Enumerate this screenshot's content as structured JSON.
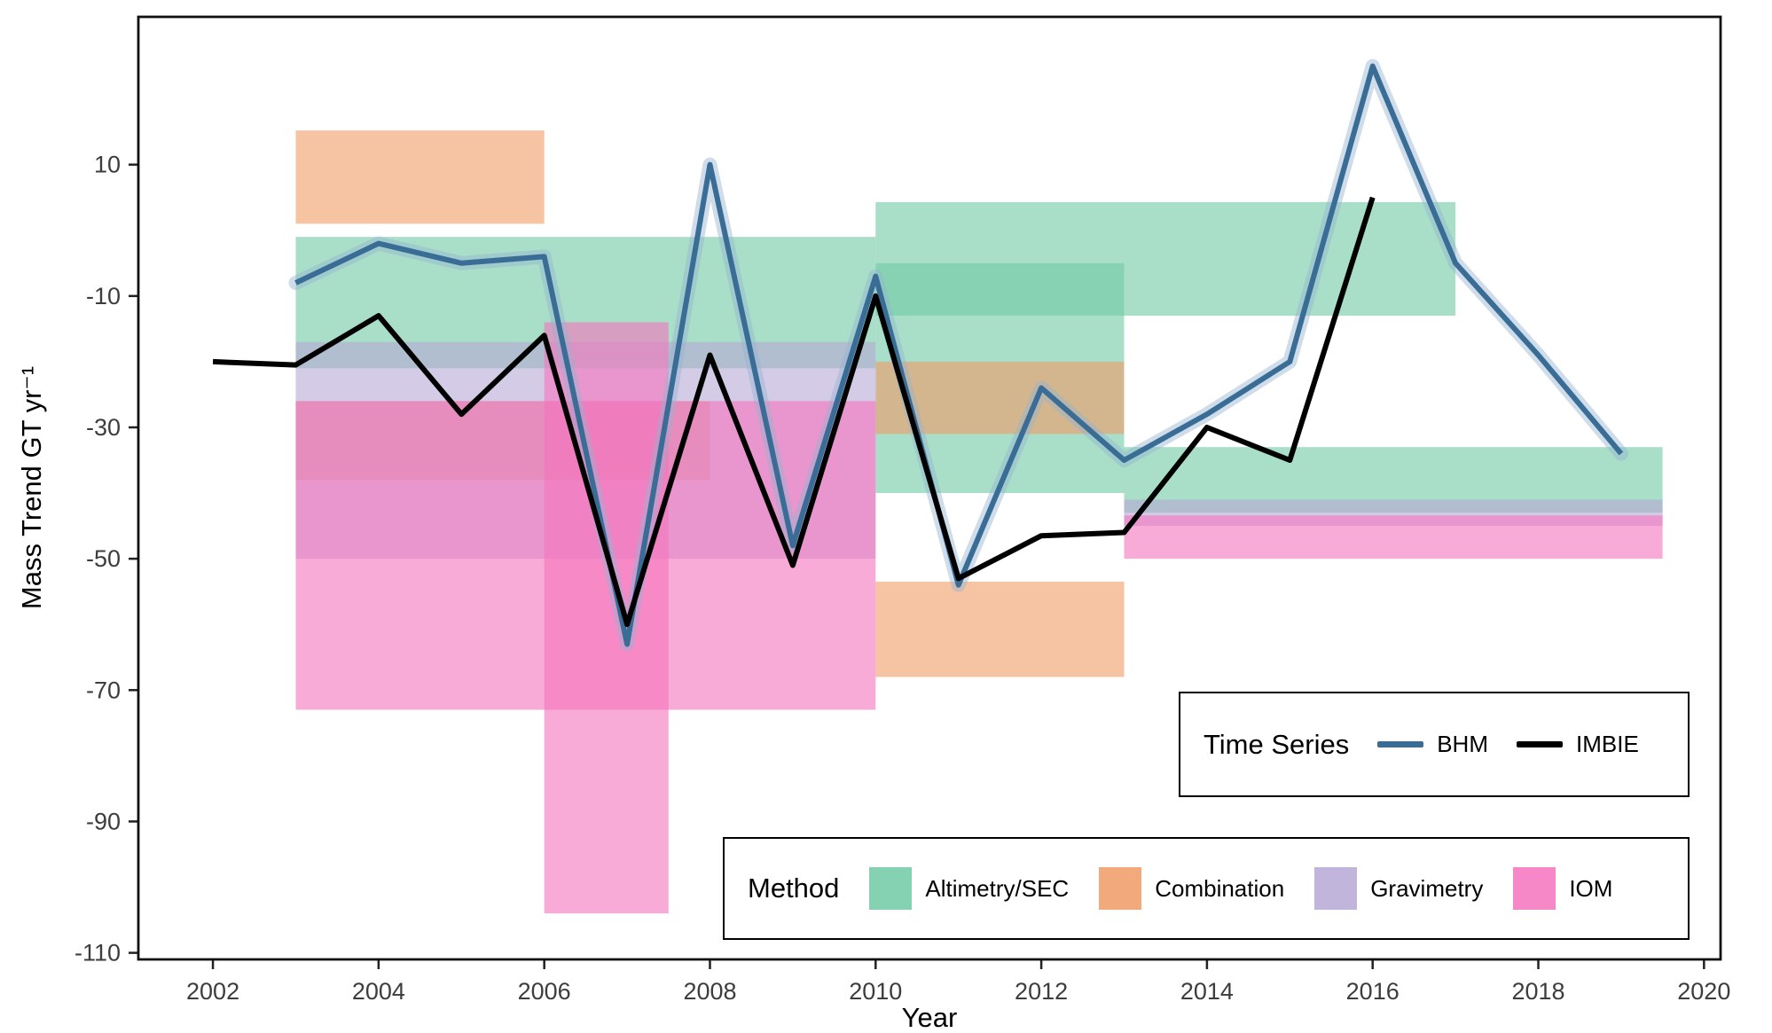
{
  "chart_data": {
    "type": "line",
    "title": "",
    "xlabel": "Year",
    "ylabel": "Mass Trend GT yr⁻¹",
    "x_ticks": [
      "2002",
      "2004",
      "2006",
      "2008",
      "2010",
      "2012",
      "2014",
      "2016",
      "2018",
      "2020"
    ],
    "y_ticks": [
      "10",
      "-10",
      "-30",
      "-50",
      "-70",
      "-90",
      "-110"
    ],
    "xlim": [
      2001.1,
      2020.2
    ],
    "ylim": [
      -111,
      32.5
    ],
    "grid": false,
    "series": [
      {
        "name": "BHM",
        "color": "#3a6d96",
        "ribbon_color": "#94b4d1",
        "x": [
          2003,
          2004,
          2005,
          2006,
          2007,
          2008,
          2009,
          2010,
          2011,
          2012,
          2013,
          2014,
          2015,
          2016,
          2017,
          2018,
          2019
        ],
        "y": [
          -8,
          -2,
          -5,
          -4,
          -63,
          10,
          -48,
          -7,
          -54,
          -24,
          -35,
          -28,
          -20,
          25,
          -5,
          -19,
          -34
        ]
      },
      {
        "name": "IMBIE",
        "color": "#000000",
        "x": [
          2002,
          2003,
          2004,
          2005,
          2006,
          2007,
          2008,
          2009,
          2010,
          2011,
          2012,
          2013,
          2014,
          2015,
          2016
        ],
        "y": [
          -20,
          -20.5,
          -13,
          -28,
          -16,
          -60,
          -19,
          -51,
          -10,
          -53,
          -46.5,
          -46,
          -30,
          -35,
          5
        ]
      }
    ],
    "methods": {
      "Altimetry/SEC": "#6fcaa3",
      "Combination": "#f09b66",
      "Gravimetry": "#b7a8d6",
      "IOM": "#f573bd"
    },
    "rect_alpha": 0.6,
    "rects": [
      {
        "method": "Altimetry/SEC",
        "x0": 2003,
        "x1": 2010,
        "y0": -21,
        "y1": -1
      },
      {
        "method": "Altimetry/SEC",
        "x0": 2010,
        "x1": 2017,
        "y0": -13,
        "y1": 4.3
      },
      {
        "method": "Altimetry/SEC",
        "x0": 2010,
        "x1": 2013,
        "y0": -40,
        "y1": -5
      },
      {
        "method": "Altimetry/SEC",
        "x0": 2013,
        "x1": 2019.5,
        "y0": -43,
        "y1": -33
      },
      {
        "method": "Combination",
        "x0": 2003,
        "x1": 2006,
        "y0": 1,
        "y1": 15.2
      },
      {
        "method": "Combination",
        "x0": 2003,
        "x1": 2008,
        "y0": -38,
        "y1": -26
      },
      {
        "method": "Combination",
        "x0": 2010,
        "x1": 2013,
        "y0": -31,
        "y1": -20
      },
      {
        "method": "Combination",
        "x0": 2010,
        "x1": 2013,
        "y0": -68,
        "y1": -53.5
      },
      {
        "method": "Gravimetry",
        "x0": 2003,
        "x1": 2010,
        "y0": -50,
        "y1": -17
      },
      {
        "method": "Gravimetry",
        "x0": 2013,
        "x1": 2019.5,
        "y0": -45,
        "y1": -41
      },
      {
        "method": "IOM",
        "x0": 2003,
        "x1": 2010,
        "y0": -73,
        "y1": -26
      },
      {
        "method": "IOM",
        "x0": 2006,
        "x1": 2007.5,
        "y0": -104,
        "y1": -14
      },
      {
        "method": "IOM",
        "x0": 2013,
        "x1": 2019.5,
        "y0": -50,
        "y1": -43.4
      }
    ],
    "legend_positions": {
      "time_series": "inside lower-right",
      "method": "inside bottom"
    }
  },
  "legends": {
    "time_series": {
      "title": "Time Series",
      "entries": [
        {
          "label": "BHM",
          "color": "#3a6d96"
        },
        {
          "label": "IMBIE",
          "color": "#000000"
        }
      ]
    },
    "method": {
      "title": "Method",
      "entries": [
        {
          "label": "Altimetry/SEC",
          "color": "#6fcaa3"
        },
        {
          "label": "Combination",
          "color": "#f09b66"
        },
        {
          "label": "Gravimetry",
          "color": "#b7a8d6"
        },
        {
          "label": "IOM",
          "color": "#f573bd"
        }
      ]
    }
  }
}
